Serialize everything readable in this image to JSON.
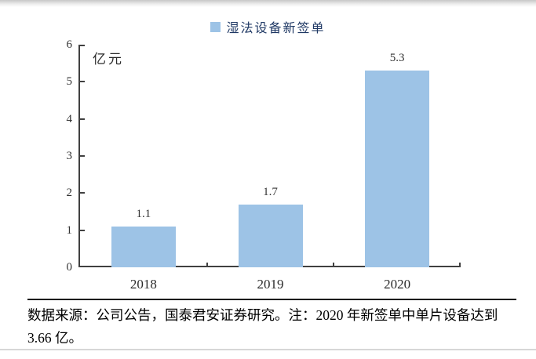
{
  "legend": {
    "label": "湿法设备新签单"
  },
  "chart_data": {
    "type": "bar",
    "series_name": "湿法设备新签单",
    "unit_label": "亿元",
    "categories": [
      "2018",
      "2019",
      "2020"
    ],
    "values": [
      1.1,
      1.7,
      5.3
    ],
    "value_labels": [
      "1.1",
      "1.7",
      "5.3"
    ],
    "ylim": [
      0,
      6
    ],
    "yticks": [
      0,
      1,
      2,
      3,
      4,
      5,
      6
    ],
    "grid": false,
    "legend_position": "top-center",
    "bar_color": "#9DC3E6"
  },
  "footer": {
    "source_note": "数据来源：公司公告，国泰君安证券研究。注：2020 年新签单中单片设备达到 3.66 亿。"
  },
  "colors": {
    "bar": "#9DC3E6",
    "legend_text": "#1F3864",
    "axis": "#404040",
    "divider_dark": "#1a1a1a",
    "divider_light": "#d7d7d7"
  }
}
